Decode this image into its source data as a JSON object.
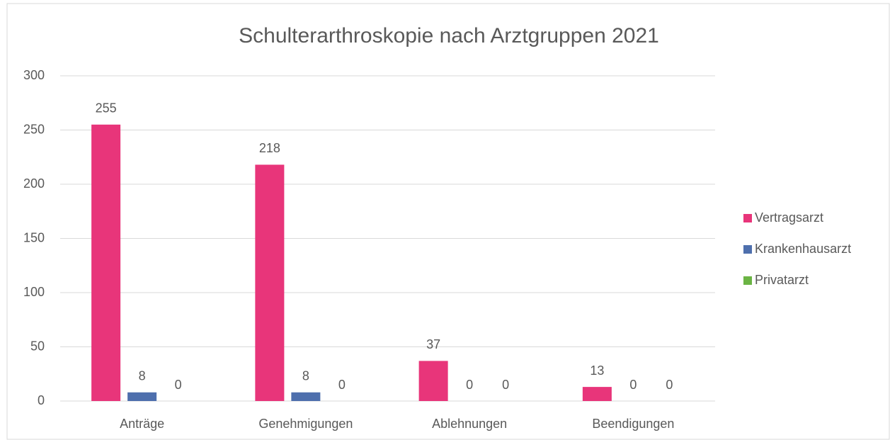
{
  "chart_data": {
    "type": "bar",
    "title": "Schulterarthroskopie nach Arztgruppen 2021",
    "categories": [
      "Anträge",
      "Genehmigungen",
      "Ablehnungen",
      "Beendigungen"
    ],
    "series": [
      {
        "name": "Vertragsarzt",
        "color": "#e8357a",
        "values": [
          255,
          218,
          37,
          13
        ]
      },
      {
        "name": "Krankenhausarzt",
        "color": "#4e6fad",
        "values": [
          8,
          8,
          0,
          0
        ]
      },
      {
        "name": "Privatarzt",
        "color": "#6bb444",
        "values": [
          0,
          0,
          0,
          0
        ]
      }
    ],
    "ylim": [
      0,
      300
    ],
    "yticks": [
      0,
      50,
      100,
      150,
      200,
      250,
      300
    ],
    "grid": true,
    "legend": "right"
  }
}
